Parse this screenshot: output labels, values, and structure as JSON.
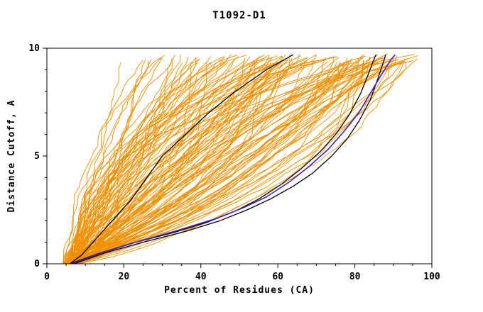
{
  "figure": {
    "title": "T1092-D1"
  },
  "chart_data": {
    "type": "line",
    "title": "T1092-D1",
    "xlabel": "Percent of Residues (CA)",
    "ylabel": "Distance Cutoff, A",
    "xlim": [
      0,
      100
    ],
    "ylim": [
      0,
      10
    ],
    "xticks": {
      "major": [
        0,
        20,
        40,
        60,
        80,
        100
      ],
      "minor_step": 5
    },
    "yticks": {
      "major": [
        0,
        5,
        10
      ],
      "minor_step": 1
    },
    "grid": false,
    "legend": null,
    "colors": {
      "ensemble": "#ee8f00",
      "reference": "#000000",
      "highlight": "#3b1fd6",
      "frame": "#000000",
      "background": "#ffffff"
    },
    "series": [
      {
        "name": "reference-curve-upper-black",
        "color": "#000000",
        "width": 1.3,
        "points": [
          [
            6,
            0
          ],
          [
            9,
            0.4
          ],
          [
            12,
            1
          ],
          [
            17,
            2
          ],
          [
            22,
            3
          ],
          [
            26,
            4
          ],
          [
            30,
            5
          ],
          [
            36,
            6
          ],
          [
            42,
            7
          ],
          [
            49,
            8
          ],
          [
            57,
            9
          ],
          [
            62,
            9.5
          ],
          [
            64,
            9.7
          ]
        ]
      },
      {
        "name": "reference-curve-right-black-a",
        "color": "#000000",
        "width": 1.3,
        "points": [
          [
            7,
            0
          ],
          [
            15,
            0.5
          ],
          [
            25,
            1
          ],
          [
            36,
            1.5
          ],
          [
            45,
            2
          ],
          [
            52,
            2.5
          ],
          [
            58,
            3
          ],
          [
            64,
            3.6
          ],
          [
            69,
            4.2
          ],
          [
            74,
            5
          ],
          [
            78,
            5.8
          ],
          [
            81,
            6.6
          ],
          [
            84,
            7.6
          ],
          [
            86,
            8.6
          ],
          [
            87.5,
            9.4
          ],
          [
            88,
            9.7
          ]
        ]
      },
      {
        "name": "reference-curve-right-black-b",
        "color": "#000000",
        "width": 1.3,
        "points": [
          [
            6,
            0
          ],
          [
            13,
            0.45
          ],
          [
            22,
            0.95
          ],
          [
            33,
            1.45
          ],
          [
            42,
            1.95
          ],
          [
            49,
            2.45
          ],
          [
            55,
            3
          ],
          [
            61,
            3.7
          ],
          [
            66,
            4.4
          ],
          [
            71,
            5.2
          ],
          [
            75,
            6
          ],
          [
            78.5,
            6.9
          ],
          [
            81.5,
            7.9
          ],
          [
            83.5,
            8.8
          ],
          [
            85,
            9.5
          ],
          [
            85.5,
            9.7
          ]
        ]
      },
      {
        "name": "highlight-curve-blue",
        "color": "#3b1fd6",
        "width": 1.6,
        "points": [
          [
            6.5,
            0
          ],
          [
            14,
            0.5
          ],
          [
            24,
            1.05
          ],
          [
            34,
            1.55
          ],
          [
            44,
            2.1
          ],
          [
            51,
            2.6
          ],
          [
            57,
            3.1
          ],
          [
            63,
            3.8
          ],
          [
            68,
            4.5
          ],
          [
            73,
            5.3
          ],
          [
            77,
            6.1
          ],
          [
            81,
            7
          ],
          [
            84,
            7.9
          ],
          [
            87,
            8.8
          ],
          [
            89.5,
            9.5
          ],
          [
            90.5,
            9.7
          ]
        ]
      }
    ],
    "ensemble": {
      "name": "model-curves",
      "count": 130,
      "seed": 12,
      "samples": 30,
      "start_x_range": [
        4,
        9
      ],
      "top_x_range": [
        12,
        97
      ],
      "top_y_range": [
        9.3,
        9.75
      ]
    }
  }
}
